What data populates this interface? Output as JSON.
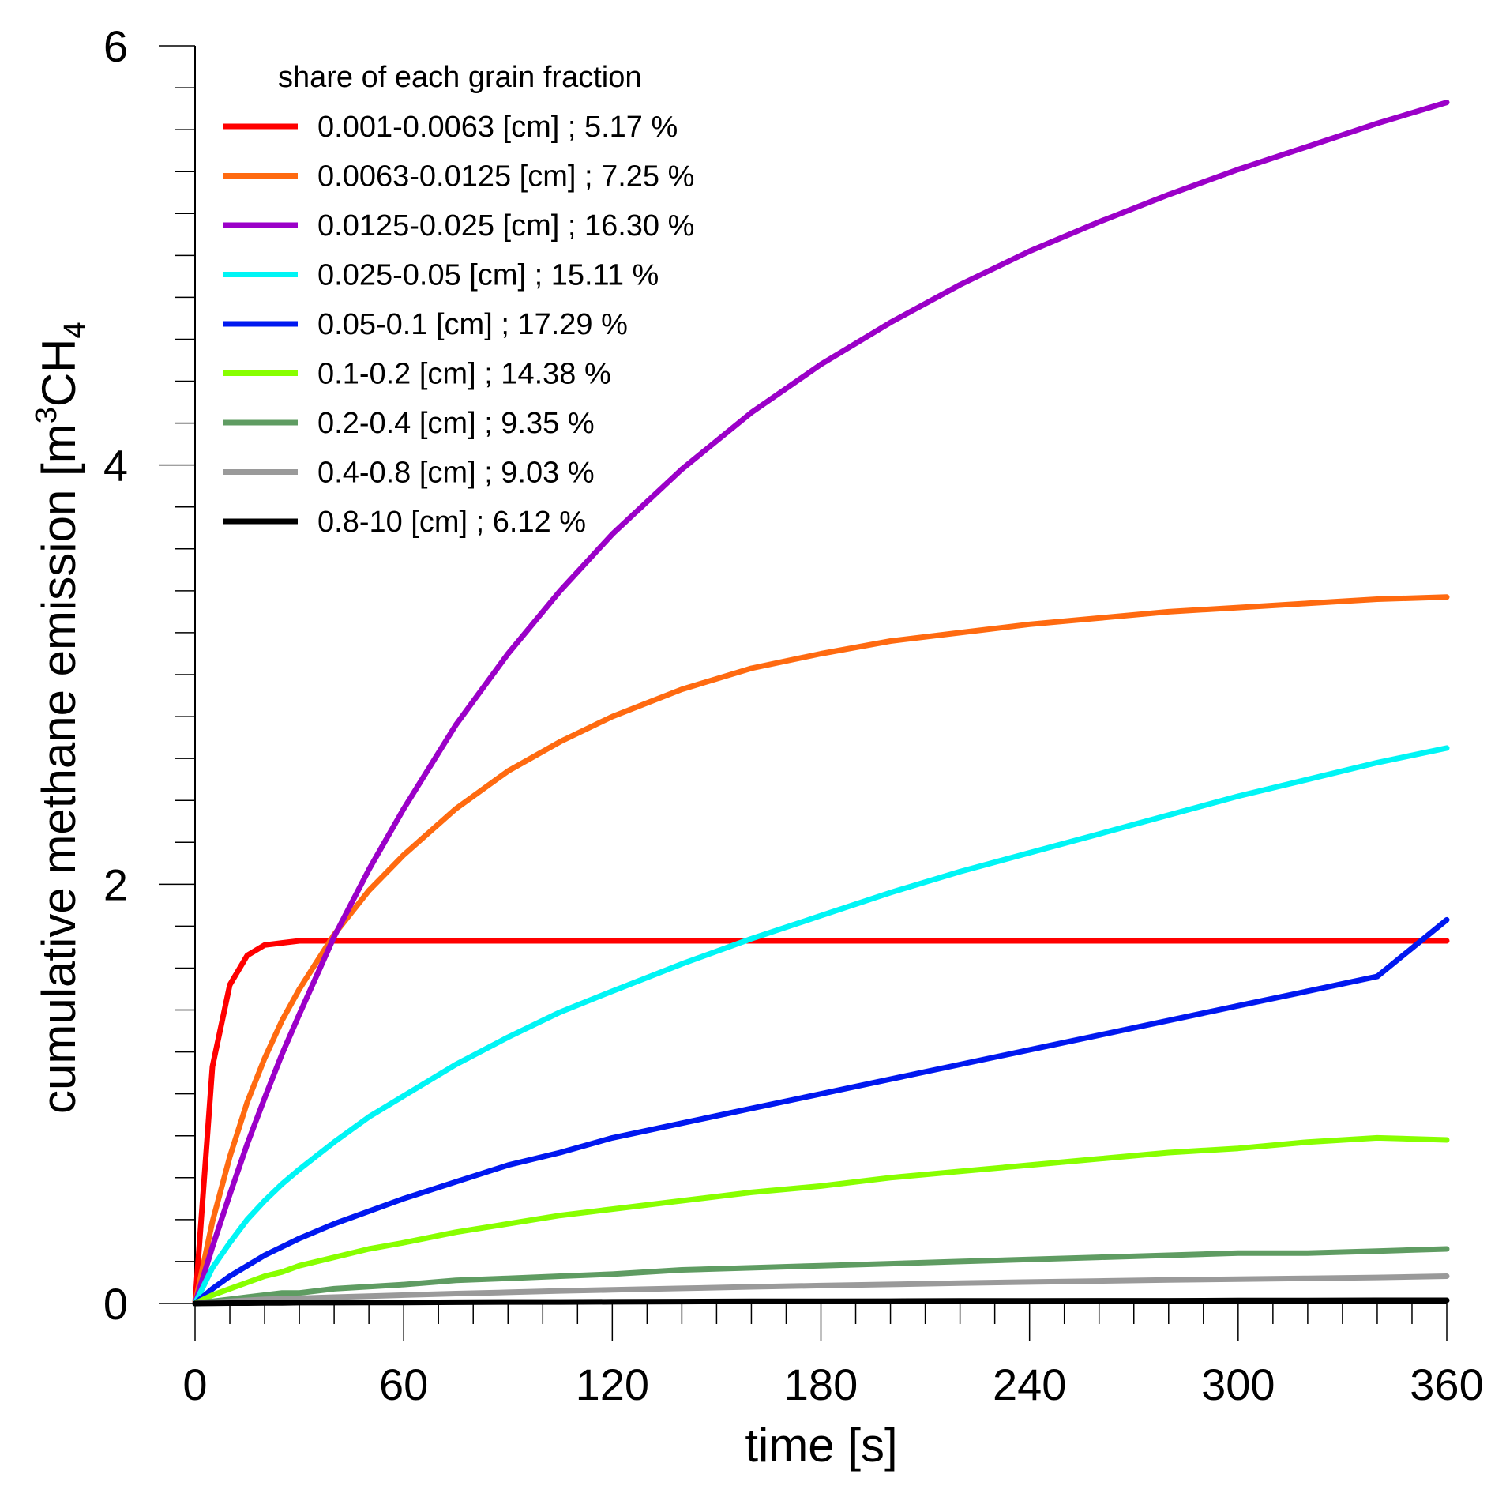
{
  "chart_data": {
    "type": "line",
    "title": "",
    "xlabel": "time [s]",
    "ylabel_parts": [
      "cumulative methane emission [m",
      "3",
      "CH",
      "4"
    ],
    "xlim": [
      0,
      360
    ],
    "ylim": [
      0,
      6
    ],
    "x_ticks": [
      0,
      60,
      120,
      180,
      240,
      300,
      360
    ],
    "x_minor_step": 10,
    "y_ticks": [
      0,
      2,
      4,
      6
    ],
    "y_minor_step": 0.2,
    "grid": false,
    "legend_title": "share of each grain fraction",
    "legend_position": "top-left",
    "x": [
      0,
      5,
      10,
      15,
      20,
      25,
      30,
      40,
      50,
      60,
      75,
      90,
      105,
      120,
      140,
      160,
      180,
      200,
      220,
      240,
      260,
      280,
      300,
      320,
      340,
      360
    ],
    "series": [
      {
        "name": "0.001-0.0063 [cm] ; 5.17 %",
        "color": "#ff0000",
        "values": [
          0,
          1.13,
          1.52,
          1.66,
          1.71,
          1.72,
          1.73,
          1.73,
          1.73,
          1.73,
          1.73,
          1.73,
          1.73,
          1.73,
          1.73,
          1.73,
          1.73,
          1.73,
          1.73,
          1.73,
          1.73,
          1.73,
          1.73,
          1.73,
          1.73,
          1.73
        ]
      },
      {
        "name": "0.0063-0.0125 [cm] ; 7.25 %",
        "color": "#ff6a10",
        "values": [
          0,
          0.39,
          0.7,
          0.96,
          1.17,
          1.35,
          1.5,
          1.76,
          1.97,
          2.14,
          2.36,
          2.54,
          2.68,
          2.8,
          2.93,
          3.03,
          3.1,
          3.16,
          3.2,
          3.24,
          3.27,
          3.3,
          3.32,
          3.34,
          3.36,
          3.37
        ]
      },
      {
        "name": "0.0125-0.025 [cm] ; 16.30 %",
        "color": "#9b00c8",
        "values": [
          0,
          0.27,
          0.52,
          0.76,
          0.98,
          1.19,
          1.38,
          1.75,
          2.07,
          2.36,
          2.76,
          3.1,
          3.4,
          3.67,
          3.98,
          4.25,
          4.48,
          4.68,
          4.86,
          5.02,
          5.16,
          5.29,
          5.41,
          5.52,
          5.63,
          5.73
        ]
      },
      {
        "name": "0.025-0.05 [cm] ; 15.11 %",
        "color": "#00f5f5",
        "values": [
          0,
          0.17,
          0.29,
          0.4,
          0.49,
          0.57,
          0.64,
          0.77,
          0.89,
          0.99,
          1.14,
          1.27,
          1.39,
          1.49,
          1.62,
          1.74,
          1.85,
          1.96,
          2.06,
          2.15,
          2.24,
          2.33,
          2.42,
          2.5,
          2.58,
          2.65
        ]
      },
      {
        "name": "0.05-0.1 [cm] ; 17.29 %",
        "color": "#0018f0",
        "values": [
          0,
          0.07,
          0.13,
          0.18,
          0.23,
          0.27,
          0.31,
          0.38,
          0.44,
          0.5,
          0.58,
          0.66,
          0.72,
          0.79,
          0.86,
          0.93,
          1.0,
          1.07,
          1.14,
          1.21,
          1.28,
          1.35,
          1.42,
          1.49,
          1.56,
          1.83
        ]
      },
      {
        "name": "0.1-0.2 [cm] ; 14.38 %",
        "color": "#88ff00",
        "values": [
          0,
          0.04,
          0.07,
          0.1,
          0.13,
          0.15,
          0.18,
          0.22,
          0.26,
          0.29,
          0.34,
          0.38,
          0.42,
          0.45,
          0.49,
          0.53,
          0.56,
          0.6,
          0.63,
          0.66,
          0.69,
          0.72,
          0.74,
          0.77,
          0.79,
          0.78
        ]
      },
      {
        "name": "0.2-0.4 [cm] ; 9.35 %",
        "color": "#5f9c62",
        "values": [
          0,
          0.01,
          0.02,
          0.03,
          0.04,
          0.05,
          0.05,
          0.07,
          0.08,
          0.09,
          0.11,
          0.12,
          0.13,
          0.14,
          0.16,
          0.17,
          0.18,
          0.19,
          0.2,
          0.21,
          0.22,
          0.23,
          0.24,
          0.24,
          0.25,
          0.26
        ]
      },
      {
        "name": "0.4-0.8 [cm] ; 9.03 %",
        "color": "#9a9a9a",
        "values": [
          0,
          0.005,
          0.01,
          0.015,
          0.02,
          0.022,
          0.025,
          0.03,
          0.035,
          0.04,
          0.047,
          0.053,
          0.06,
          0.065,
          0.072,
          0.079,
          0.085,
          0.091,
          0.097,
          0.102,
          0.107,
          0.112,
          0.116,
          0.12,
          0.124,
          0.13
        ]
      },
      {
        "name": "0.8-10 [cm] ; 6.12 %",
        "color": "#000000",
        "values": [
          0,
          0.001,
          0.002,
          0.002,
          0.003,
          0.003,
          0.004,
          0.004,
          0.005,
          0.005,
          0.006,
          0.007,
          0.007,
          0.008,
          0.009,
          0.01,
          0.01,
          0.011,
          0.012,
          0.012,
          0.013,
          0.013,
          0.014,
          0.014,
          0.015,
          0.015
        ]
      }
    ]
  }
}
